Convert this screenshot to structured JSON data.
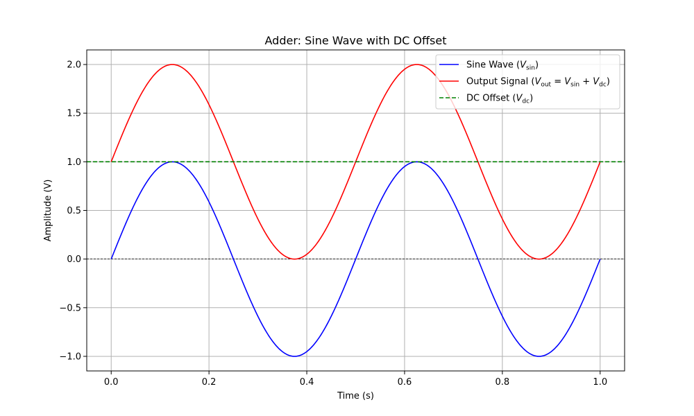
{
  "chart_data": {
    "type": "line",
    "title": "Adder: Sine Wave with DC Offset",
    "xlabel": "Time (s)",
    "ylabel": "Amplitude (V)",
    "xlim": [
      -0.05,
      1.05
    ],
    "ylim": [
      -1.15,
      2.15
    ],
    "xticks": [
      0.0,
      0.2,
      0.4,
      0.6,
      0.8,
      1.0
    ],
    "xtick_labels": [
      "0.0",
      "0.2",
      "0.4",
      "0.6",
      "0.8",
      "1.0"
    ],
    "yticks": [
      -1.0,
      -0.5,
      0.0,
      0.5,
      1.0,
      1.5,
      2.0
    ],
    "ytick_labels": [
      "−1.0",
      "−0.5",
      "0.0",
      "0.5",
      "1.0",
      "1.5",
      "2.0"
    ],
    "grid": true,
    "legend_position": "top-right",
    "frequency_hz": 2,
    "sample_count": 400,
    "series": [
      {
        "name": "Sine Wave (V_sin)",
        "legend_parts": [
          [
            "Sine Wave (",
            ""
          ],
          [
            "V",
            "i"
          ],
          [
            "sin",
            "sub"
          ],
          [
            ")",
            ""
          ]
        ],
        "color": "#0000ff",
        "style": "solid",
        "amplitude": 1.0,
        "offset": 0.0,
        "x_range": [
          0.0,
          1.0
        ]
      },
      {
        "name": "Output Signal (V_out = V_sin + V_dc)",
        "legend_parts": [
          [
            "Output Signal (",
            ""
          ],
          [
            "V",
            "i"
          ],
          [
            "out",
            "sub"
          ],
          [
            " = ",
            ""
          ],
          [
            "V",
            "i"
          ],
          [
            "sin",
            "sub"
          ],
          [
            " + ",
            ""
          ],
          [
            "V",
            "i"
          ],
          [
            "dc",
            "sub"
          ],
          [
            ")",
            ""
          ]
        ],
        "color": "#ff0000",
        "style": "solid",
        "amplitude": 1.0,
        "offset": 1.0,
        "x_range": [
          0.0,
          1.0
        ]
      },
      {
        "name": "DC Offset (V_dc)",
        "legend_parts": [
          [
            "DC Offset (",
            ""
          ],
          [
            "V",
            "i"
          ],
          [
            "dc",
            "sub"
          ],
          [
            ")",
            ""
          ]
        ],
        "color": "#008000",
        "style": "dashed",
        "constant": 1.0,
        "x_range": [
          -0.05,
          1.05
        ]
      }
    ],
    "reference_lines": [
      {
        "y": 0.0,
        "color": "#000000",
        "style": "dashed"
      }
    ]
  }
}
